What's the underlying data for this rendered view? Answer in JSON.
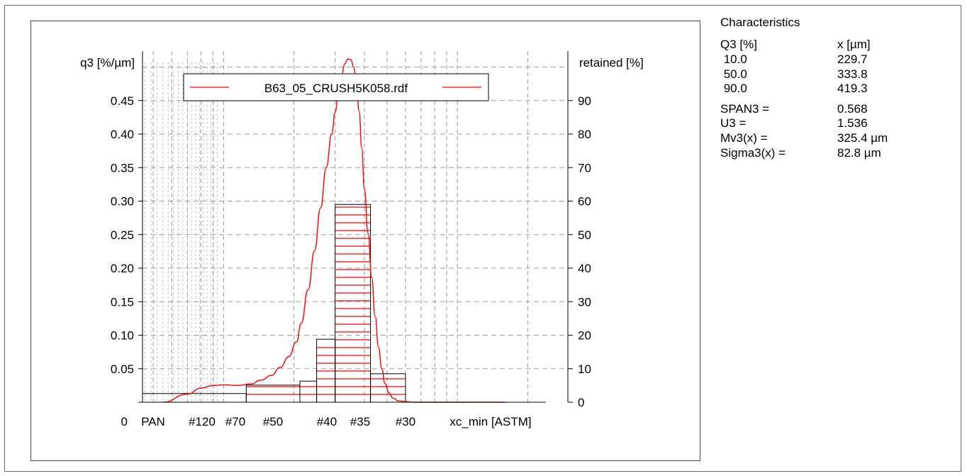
{
  "chart_data": {
    "type": "bar",
    "legend": {
      "label": "B63_05_CRUSH5K058.rdf",
      "placement": "top",
      "color": "#ff0000"
    },
    "y_left": {
      "label": "q3 [%/µm]",
      "ticks": [
        "0",
        "0.05",
        "0.10",
        "0.15",
        "0.20",
        "0.25",
        "0.30",
        "0.35",
        "0.40",
        "0.45"
      ],
      "tick_values": [
        0,
        0.05,
        0.1,
        0.15,
        0.2,
        0.25,
        0.3,
        0.35,
        0.4,
        0.45
      ],
      "range": [
        0,
        0.5
      ]
    },
    "y_right": {
      "label": "retained [%]",
      "ticks": [
        "0",
        "10",
        "20",
        "30",
        "40",
        "50",
        "60",
        "70",
        "80",
        "90"
      ],
      "tick_values": [
        0,
        10,
        20,
        30,
        40,
        50,
        60,
        70,
        80,
        90
      ],
      "range": [
        0,
        100
      ]
    },
    "x_axis": {
      "label": "xc_min [ASTM]",
      "ticks": [
        "PAN",
        "#120",
        "#70",
        "#50",
        "#40",
        "#35",
        "#30"
      ],
      "scale": "log",
      "grid": true
    },
    "bars": {
      "sieves": [
        "PAN",
        "#120",
        "#70",
        "#50",
        "#40",
        "#35",
        "#30"
      ],
      "retained_percent": [
        2.6,
        5.1,
        6.3,
        18.8,
        59.0,
        8.5
      ],
      "bins": [
        "PAN–#120",
        "#120–#70",
        "#70–#60",
        "#60–#50",
        "#50–#40",
        "#40–#30"
      ],
      "hatch_color": "#ff0000"
    },
    "density_curve": {
      "name": "B63_05_CRUSH5K058.rdf",
      "x_um": [
        55,
        70,
        80,
        90,
        100,
        115,
        130,
        145,
        160,
        175,
        190,
        205,
        215,
        230,
        245,
        260,
        275,
        290,
        300,
        310,
        320,
        330,
        340,
        350,
        360,
        370,
        380,
        390,
        400,
        415,
        430,
        445,
        460,
        475,
        490,
        510,
        530,
        560,
        600,
        650,
        700,
        800,
        900,
        1000,
        1200,
        1400,
        1600
      ],
      "q3": [
        0,
        0.012,
        0.021,
        0.025,
        0.026,
        0.025,
        0.027,
        0.033,
        0.04,
        0.052,
        0.068,
        0.09,
        0.118,
        0.168,
        0.226,
        0.29,
        0.35,
        0.4,
        0.432,
        0.462,
        0.488,
        0.505,
        0.512,
        0.511,
        0.5,
        0.472,
        0.434,
        0.38,
        0.318,
        0.252,
        0.186,
        0.128,
        0.082,
        0.05,
        0.028,
        0.014,
        0.006,
        0.002,
        0.001,
        0,
        0,
        0,
        0,
        0,
        0,
        0,
        0
      ]
    },
    "grid": true
  },
  "characteristics": {
    "title": "Characteristics",
    "header": {
      "left": "Q3 [%]",
      "right": "x [µm]"
    },
    "quantiles": [
      {
        "q": " 10.0",
        "x": "229.7"
      },
      {
        "q": " 50.0",
        "x": "333.8"
      },
      {
        "q": " 90.0",
        "x": "419.3"
      }
    ],
    "stats": [
      {
        "label": "SPAN3 =",
        "value": "0.568"
      },
      {
        "label": "U3 =",
        "value": "1.536"
      },
      {
        "label": "Mv3(x) =",
        "value": "325.4 µm"
      },
      {
        "label": "Sigma3(x) =",
        "value": "82.8 µm"
      }
    ]
  }
}
